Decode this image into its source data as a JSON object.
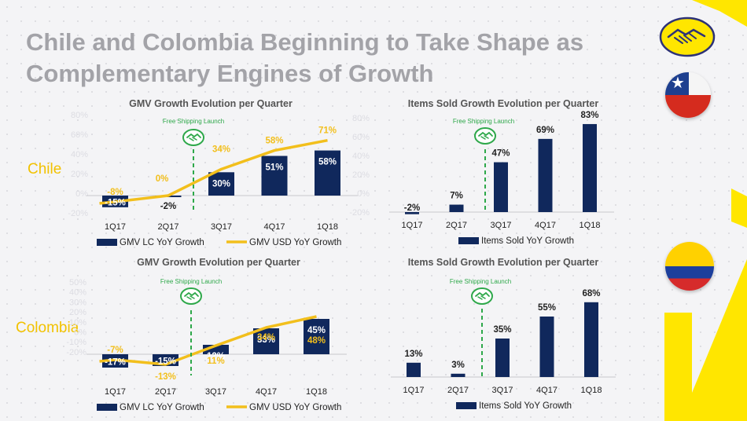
{
  "slide": {
    "title_line1": "Chile and Colombia Beginning to Take Shape as",
    "title_line2": "Complementary Engines of Growth",
    "regions": [
      "Chile",
      "Colombia"
    ]
  },
  "colors": {
    "bar": "#10285c",
    "line": "#f2bf1c",
    "brand_yellow": "#ffe600",
    "dashed": "#2ea84a",
    "title": "#a3a3a8"
  },
  "icons": [
    "handshake-icon",
    "chile-flag-icon",
    "colombia-flag-icon",
    "mercadolibre-logo"
  ],
  "annotation": "Free Shipping Launch",
  "chart_data": [
    {
      "type": "bar",
      "title": "GMV Growth Evolution per Quarter",
      "region": "Chile",
      "categories": [
        "1Q17",
        "2Q17",
        "3Q17",
        "4Q17",
        "1Q18"
      ],
      "series": [
        {
          "name": "GMV LC YoY Growth",
          "type": "bar",
          "values": [
            -15,
            -2,
            30,
            51,
            58
          ],
          "labels": [
            "-15%",
            "-2%",
            "30%",
            "51%",
            "58%"
          ]
        },
        {
          "name": "GMV USD YoY Growth",
          "type": "line",
          "values": [
            -8,
            0,
            34,
            58,
            71
          ],
          "labels": [
            "-8%",
            "0%",
            "34%",
            "58%",
            "71%"
          ]
        }
      ],
      "y_ticks": [
        "80%",
        "60%",
        "40%",
        "20%",
        "0%",
        "-20%"
      ],
      "ylim": [
        -20,
        80
      ],
      "annotation_between": [
        "2Q17",
        "3Q17"
      ],
      "legend_placement": "bottom"
    },
    {
      "type": "bar",
      "title": "Items Sold Growth Evolution per Quarter",
      "region": "Chile",
      "categories": [
        "1Q17",
        "2Q17",
        "3Q17",
        "4Q17",
        "1Q18"
      ],
      "series": [
        {
          "name": "Items Sold YoY Growth",
          "type": "bar",
          "values": [
            -2,
            7,
            47,
            69,
            83
          ],
          "labels": [
            "-2%",
            "7%",
            "47%",
            "69%",
            "83%"
          ]
        }
      ],
      "y_ticks": [
        "80%",
        "60%",
        "40%",
        "20%",
        "0%",
        "-20%"
      ],
      "ylim": [
        -20,
        80
      ],
      "annotation_between": [
        "2Q17",
        "3Q17"
      ],
      "legend_placement": "bottom"
    },
    {
      "type": "bar",
      "title": "GMV Growth Evolution per Quarter",
      "region": "Colombia",
      "categories": [
        "1Q17",
        "2Q17",
        "3Q17",
        "4Q17",
        "1Q18"
      ],
      "series": [
        {
          "name": "GMV LC YoY Growth",
          "type": "bar",
          "values": [
            -17,
            -15,
            12,
            33,
            45
          ],
          "labels": [
            "-17%",
            "-15%",
            "12%",
            "33%",
            "45%"
          ]
        },
        {
          "name": "GMV USD YoY Growth",
          "type": "line",
          "values": [
            -7,
            -13,
            11,
            34,
            48
          ],
          "labels": [
            "-7%",
            "-13%",
            "11%",
            "34%",
            "48%"
          ]
        }
      ],
      "y_ticks": [
        "50%",
        "40%",
        "30%",
        "20%",
        "10%",
        "0%",
        "-10%",
        "-20%"
      ],
      "ylim": [
        -20,
        50
      ],
      "annotation_between": [
        "2Q17",
        "3Q17"
      ],
      "legend_placement": "bottom"
    },
    {
      "type": "bar",
      "title": "Items Sold Growth Evolution per Quarter",
      "region": "Colombia",
      "categories": [
        "1Q17",
        "2Q17",
        "3Q17",
        "4Q17",
        "1Q18"
      ],
      "series": [
        {
          "name": "Items Sold YoY Growth",
          "type": "bar",
          "values": [
            13,
            3,
            35,
            55,
            68
          ],
          "labels": [
            "13%",
            "3%",
            "35%",
            "55%",
            "68%"
          ]
        }
      ],
      "y_ticks": [],
      "ylim": [
        0,
        70
      ],
      "annotation_between": [
        "2Q17",
        "3Q17"
      ],
      "legend_placement": "bottom"
    }
  ]
}
